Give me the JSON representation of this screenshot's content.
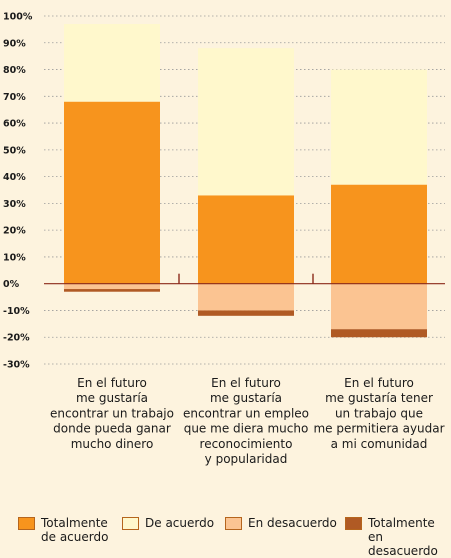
{
  "chart_data": {
    "type": "bar",
    "stacked": true,
    "categories": [
      "En el futuro\nme gustaría\nencontrar un trabajo\ndonde pueda ganar\nmucho dinero",
      "En el futuro\nme gustaría\nencontrar un empleo\nque me diera mucho\nreconocimiento\ny popularidad",
      "En el futuro\nme gustaría tener\nun trabajo que\nme permitiera ayudar\na mi comunidad"
    ],
    "series": [
      {
        "name": "Totalmente\nde acuerdo",
        "color": "#f7941d",
        "values": [
          68,
          33,
          37
        ]
      },
      {
        "name": "De acuerdo",
        "color": "#fff8cc",
        "values": [
          29,
          55,
          43
        ]
      },
      {
        "name": "En desacuerdo",
        "color": "#fbc492",
        "values": [
          -2,
          -10,
          -17
        ]
      },
      {
        "name": "Totalmente\nen desacuerdo",
        "color": "#b05a24",
        "values": [
          -1,
          -2,
          -3
        ]
      }
    ],
    "ylim": [
      -30,
      100
    ],
    "yticks": [
      "100%",
      "90%",
      "80%",
      "70%",
      "60%",
      "50%",
      "40%",
      "30%",
      "20%",
      "10%",
      "0%",
      "-10%",
      "-20%",
      "-30%"
    ],
    "grid": true,
    "legend_position": "bottom"
  }
}
